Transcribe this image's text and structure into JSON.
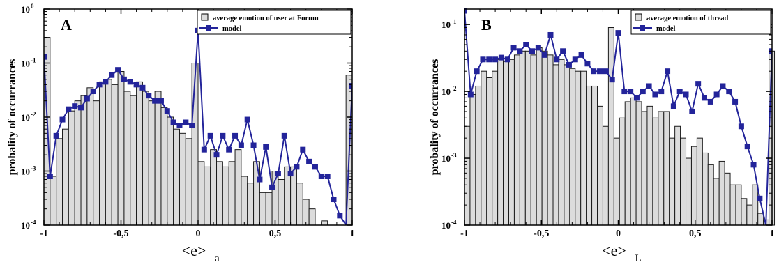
{
  "chart_data": [
    {
      "panel_label": "A",
      "type": "bar",
      "y_scale": "log",
      "ylim": [
        0.0001,
        1
      ],
      "xlim": [
        -1,
        1
      ],
      "xlabel_main": "<e>",
      "xlabel_sub": "a",
      "ylabel": "probality of  occurrances",
      "x_ticks": [
        "-1",
        "-0,5",
        "0",
        "0,5",
        "1"
      ],
      "y_ticks": [
        {
          "base": "10",
          "exp": "-4"
        },
        {
          "base": "10",
          "exp": "-3"
        },
        {
          "base": "10",
          "exp": "-2"
        },
        {
          "base": "10",
          "exp": "-1"
        },
        {
          "base": "10",
          "exp": "0"
        }
      ],
      "legend": {
        "placement": "top-right",
        "bar_label": "average emotion of user at Forum",
        "line_label": "model"
      },
      "bar_width": 0.04,
      "bars": {
        "x": [
          -0.98,
          -0.94,
          -0.9,
          -0.86,
          -0.82,
          -0.78,
          -0.74,
          -0.7,
          -0.66,
          -0.62,
          -0.58,
          -0.54,
          -0.5,
          -0.46,
          -0.42,
          -0.38,
          -0.34,
          -0.3,
          -0.26,
          -0.22,
          -0.18,
          -0.14,
          -0.1,
          -0.06,
          -0.02,
          0.02,
          0.06,
          0.1,
          0.14,
          0.18,
          0.22,
          0.26,
          0.3,
          0.34,
          0.38,
          0.42,
          0.46,
          0.5,
          0.54,
          0.58,
          0.62,
          0.66,
          0.7,
          0.74,
          0.78,
          0.82,
          0.86,
          0.9,
          0.94,
          0.98
        ],
        "values": [
          0.3,
          0.0008,
          0.004,
          0.006,
          0.013,
          0.02,
          0.025,
          0.035,
          0.02,
          0.045,
          0.05,
          0.04,
          0.07,
          0.03,
          0.025,
          0.045,
          0.03,
          0.02,
          0.03,
          0.015,
          0.01,
          0.006,
          0.005,
          0.004,
          0.1,
          0.0015,
          0.0012,
          0.0025,
          0.0015,
          0.0012,
          0.0015,
          0.0025,
          0.0008,
          0.0006,
          0.0015,
          0.0004,
          0.0004,
          0.001,
          0.0007,
          0.0012,
          0.0012,
          0.0006,
          0.0003,
          0.0002,
          0.0001,
          0.00012,
          0.0001,
          0.0001,
          0.0001,
          0.06
        ]
      },
      "series": [
        {
          "name": "model",
          "color": "#23249a",
          "x": [
            -1,
            -0.96,
            -0.92,
            -0.88,
            -0.84,
            -0.8,
            -0.76,
            -0.72,
            -0.68,
            -0.64,
            -0.6,
            -0.56,
            -0.52,
            -0.48,
            -0.44,
            -0.4,
            -0.36,
            -0.32,
            -0.28,
            -0.24,
            -0.2,
            -0.16,
            -0.12,
            -0.08,
            -0.04,
            0,
            0.04,
            0.08,
            0.12,
            0.16,
            0.2,
            0.24,
            0.28,
            0.32,
            0.36,
            0.4,
            0.44,
            0.48,
            0.52,
            0.56,
            0.6,
            0.64,
            0.68,
            0.72,
            0.76,
            0.8,
            0.84,
            0.88,
            0.92,
            0.96,
            1
          ],
          "y": [
            0.13,
            0.0008,
            0.0045,
            0.009,
            0.014,
            0.016,
            0.015,
            0.022,
            0.03,
            0.04,
            0.045,
            0.06,
            0.075,
            0.05,
            0.045,
            0.04,
            0.035,
            0.025,
            0.02,
            0.02,
            0.013,
            0.008,
            0.007,
            0.008,
            0.007,
            0.4,
            0.0025,
            0.0045,
            0.002,
            0.0045,
            0.0025,
            0.0045,
            0.003,
            0.009,
            0.003,
            0.0007,
            0.0028,
            0.0005,
            0.0009,
            0.0045,
            0.0009,
            0.0012,
            0.0025,
            0.0015,
            0.0012,
            0.0008,
            0.0008,
            0.0003,
            0.00015,
            8e-05,
            0.038
          ]
        }
      ]
    },
    {
      "panel_label": "B",
      "type": "bar",
      "y_scale": "log",
      "ylim": [
        0.0001,
        0.17
      ],
      "xlim": [
        -1,
        1
      ],
      "xlabel_main": "<e>",
      "xlabel_sub": "L",
      "ylabel": "probality of  occurrances",
      "x_ticks": [
        "-1",
        "-0,5",
        "0",
        "0,5",
        "1"
      ],
      "y_ticks": [
        {
          "base": "10",
          "exp": "-4"
        },
        {
          "base": "10",
          "exp": "-3"
        },
        {
          "base": "10",
          "exp": "-2"
        },
        {
          "base": "10",
          "exp": "-1"
        }
      ],
      "legend": {
        "placement": "top-right",
        "bar_label": "average emotion of thread",
        "line_label": "model"
      },
      "bar_width": 0.036,
      "bars": {
        "x": [
          -0.982,
          -0.946,
          -0.91,
          -0.874,
          -0.838,
          -0.802,
          -0.766,
          -0.73,
          -0.694,
          -0.658,
          -0.622,
          -0.586,
          -0.55,
          -0.514,
          -0.478,
          -0.442,
          -0.406,
          -0.37,
          -0.334,
          -0.298,
          -0.262,
          -0.226,
          -0.19,
          -0.154,
          -0.118,
          -0.082,
          -0.046,
          -0.01,
          0.026,
          0.062,
          0.098,
          0.134,
          0.17,
          0.206,
          0.242,
          0.278,
          0.314,
          0.35,
          0.386,
          0.422,
          0.458,
          0.494,
          0.53,
          0.566,
          0.602,
          0.638,
          0.674,
          0.71,
          0.746,
          0.782,
          0.818,
          0.854,
          0.89,
          0.926,
          0.962,
          0.998
        ],
        "values": [
          0.003,
          0.009,
          0.012,
          0.02,
          0.016,
          0.02,
          0.03,
          0.028,
          0.03,
          0.035,
          0.04,
          0.04,
          0.035,
          0.045,
          0.04,
          0.035,
          0.025,
          0.03,
          0.025,
          0.022,
          0.02,
          0.02,
          0.012,
          0.012,
          0.006,
          0.003,
          0.09,
          0.002,
          0.004,
          0.007,
          0.008,
          0.007,
          0.005,
          0.006,
          0.004,
          0.005,
          0.005,
          0.002,
          0.003,
          0.002,
          0.001,
          0.0015,
          0.002,
          0.0012,
          0.0008,
          0.0005,
          0.0009,
          0.0006,
          0.0004,
          0.0004,
          0.00025,
          0.0002,
          0.0004,
          0.00015,
          0.00012,
          0.04
        ]
      },
      "series": [
        {
          "name": "model",
          "color": "#23249a",
          "x": [
            -1,
            -0.96,
            -0.92,
            -0.88,
            -0.84,
            -0.8,
            -0.76,
            -0.72,
            -0.68,
            -0.64,
            -0.6,
            -0.56,
            -0.52,
            -0.48,
            -0.44,
            -0.4,
            -0.36,
            -0.32,
            -0.28,
            -0.24,
            -0.2,
            -0.16,
            -0.12,
            -0.08,
            -0.04,
            0,
            0.04,
            0.08,
            0.12,
            0.16,
            0.2,
            0.24,
            0.28,
            0.32,
            0.36,
            0.4,
            0.44,
            0.48,
            0.52,
            0.56,
            0.6,
            0.64,
            0.68,
            0.72,
            0.76,
            0.8,
            0.84,
            0.88,
            0.92,
            0.96,
            1
          ],
          "y": [
            0.16,
            0.009,
            0.02,
            0.03,
            0.03,
            0.03,
            0.032,
            0.03,
            0.045,
            0.04,
            0.05,
            0.04,
            0.045,
            0.035,
            0.07,
            0.03,
            0.04,
            0.025,
            0.03,
            0.035,
            0.026,
            0.02,
            0.02,
            0.02,
            0.015,
            0.075,
            0.01,
            0.01,
            0.008,
            0.01,
            0.012,
            0.009,
            0.01,
            0.02,
            0.006,
            0.01,
            0.009,
            0.005,
            0.013,
            0.008,
            0.007,
            0.009,
            0.012,
            0.01,
            0.007,
            0.003,
            0.0015,
            0.0008,
            0.00025,
            8e-05,
            0.04
          ]
        }
      ]
    }
  ]
}
